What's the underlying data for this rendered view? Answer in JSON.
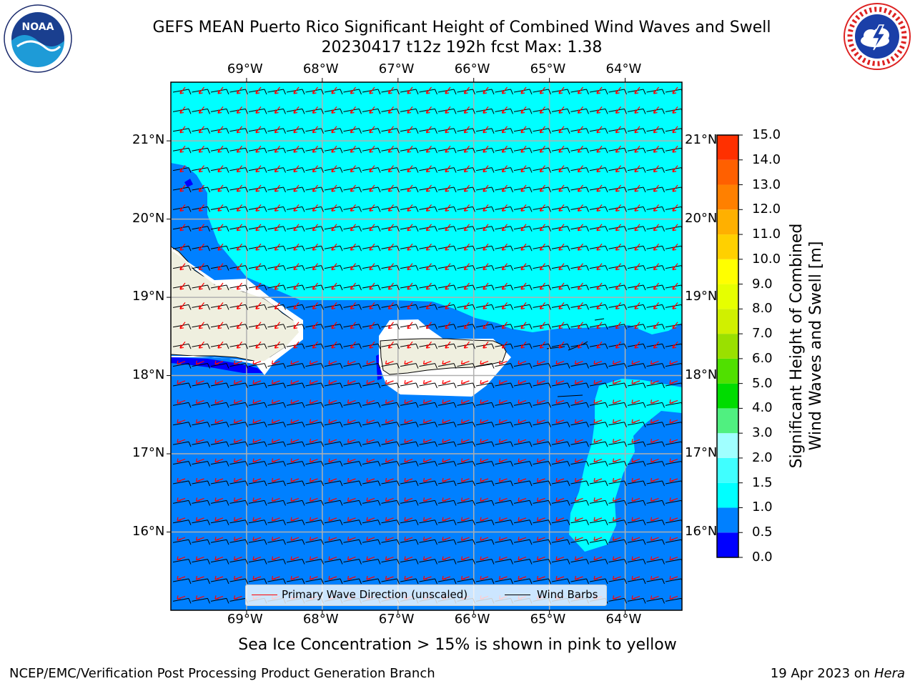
{
  "header": {
    "title_line1": "GEFS MEAN Puerto Rico Significant Height of Combined Wind Waves and Swell",
    "title_line2": "20230417 t12z 192h fcst   Max: 1.38"
  },
  "map": {
    "lon_labels": [
      "69°W",
      "68°W",
      "67°W",
      "66°W",
      "65°W",
      "64°W"
    ],
    "lat_labels": [
      "21°N",
      "20°N",
      "19°N",
      "18°N",
      "17°N",
      "16°N"
    ],
    "lon_range": [
      -70.0,
      -63.25
    ],
    "lat_range": [
      15.0,
      21.75
    ],
    "colors": {
      "ocean_light": "#00ffff",
      "ocean_mid": "#0080ff",
      "ocean_deep": "#0000ff",
      "land": "#efefdf",
      "wave_arrow": "#ff0000",
      "wind_barb": "#000000",
      "grid": "#b0b0b0"
    }
  },
  "legend": {
    "wave_label": "Primary Wave Direction (unscaled)",
    "barb_label": "Wind Barbs"
  },
  "colorbar": {
    "title_line1": "Significant Height of Combined",
    "title_line2": "Wind Waves and Swell [m]",
    "tick_labels": [
      "15.0",
      "14.0",
      "13.0",
      "12.0",
      "11.0",
      "10.0",
      "9.0",
      "8.0",
      "7.0",
      "6.0",
      "5.0",
      "4.0",
      "3.0",
      "2.0",
      "1.5",
      "1.0",
      "0.5",
      "0.0"
    ],
    "colors": [
      "#0000ff",
      "#0080ff",
      "#00ffff",
      "#40ffff",
      "#a0ffff",
      "#50f080",
      "#00dc00",
      "#50e000",
      "#9ae000",
      "#d0f000",
      "#e6ff00",
      "#ffff00",
      "#ffd000",
      "#ffb000",
      "#ff8000",
      "#ff6000",
      "#ff3000",
      "#ff0000"
    ]
  },
  "note": "Sea Ice Concentration > 15% is shown in pink to yellow",
  "footer": {
    "left": "NCEP/EMC/Verification Post Processing Product Generation Branch",
    "right_date": "19 Apr 2023 on ",
    "right_host": "Hera"
  }
}
